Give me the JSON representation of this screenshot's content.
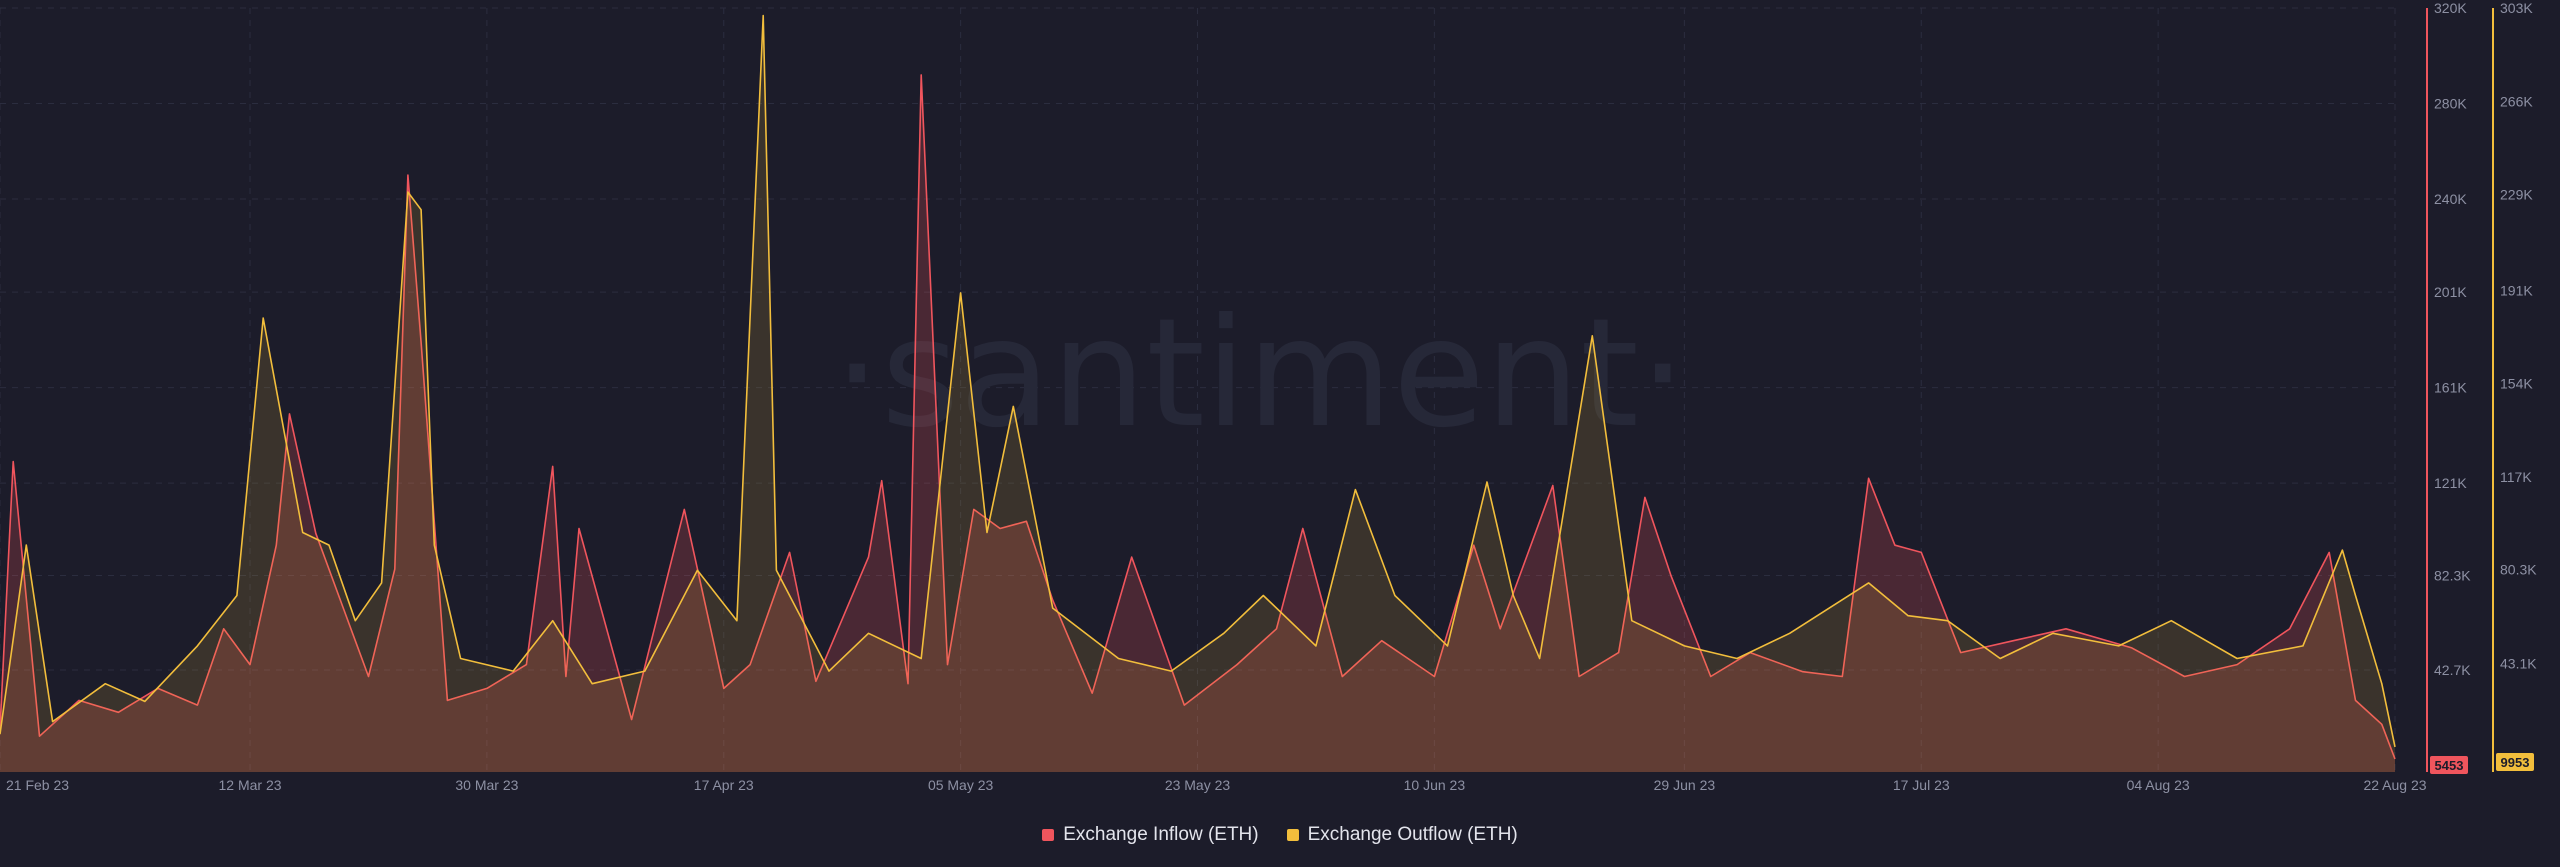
{
  "watermark": "·santiment·",
  "legend": [
    {
      "label": "Exchange Inflow (ETH)",
      "color": "#f0555d"
    },
    {
      "label": "Exchange Outflow (ETH)",
      "color": "#f2be3c"
    }
  ],
  "chart_data": {
    "type": "line",
    "x_range": [
      "2023-02-21",
      "2023-08-22"
    ],
    "x_tick_labels": [
      "21 Feb 23",
      "12 Mar 23",
      "30 Mar 23",
      "17 Apr 23",
      "05 May 23",
      "23 May 23",
      "10 Jun 23",
      "29 Jun 23",
      "17 Jul 23",
      "04 Aug 23",
      "22 Aug 23"
    ],
    "grid": true,
    "legend_position": "bottom-center",
    "axes": [
      {
        "name": "inflow",
        "side": "right-inner",
        "color": "#f0555d",
        "ylim": [
          0,
          320000
        ],
        "tick_labels": [
          "320K",
          "280K",
          "240K",
          "201K",
          "161K",
          "121K",
          "82.3K",
          "42.7K"
        ],
        "tick_values": [
          320000,
          280000,
          240000,
          201000,
          161000,
          121000,
          82300,
          42700
        ],
        "last_value_label": "5453"
      },
      {
        "name": "outflow",
        "side": "right-outer",
        "color": "#f2be3c",
        "ylim": [
          0,
          303000
        ],
        "tick_labels": [
          "303K",
          "266K",
          "229K",
          "191K",
          "154K",
          "117K",
          "80.3K",
          "43.1K"
        ],
        "tick_values": [
          303000,
          266000,
          229000,
          191000,
          154000,
          117000,
          80300,
          43100
        ],
        "last_value_label": "9953"
      }
    ],
    "series": [
      {
        "name": "Exchange Inflow (ETH)",
        "axis": "inflow",
        "color": "#f0555d",
        "points": [
          [
            "2023-02-21",
            18000
          ],
          [
            "2023-02-22",
            130000
          ],
          [
            "2023-02-24",
            15000
          ],
          [
            "2023-02-27",
            30000
          ],
          [
            "2023-03-02",
            25000
          ],
          [
            "2023-03-05",
            35000
          ],
          [
            "2023-03-08",
            28000
          ],
          [
            "2023-03-10",
            60000
          ],
          [
            "2023-03-12",
            45000
          ],
          [
            "2023-03-14",
            95000
          ],
          [
            "2023-03-15",
            150000
          ],
          [
            "2023-03-17",
            100000
          ],
          [
            "2023-03-19",
            70000
          ],
          [
            "2023-03-21",
            40000
          ],
          [
            "2023-03-23",
            85000
          ],
          [
            "2023-03-24",
            250000
          ],
          [
            "2023-03-25",
            180000
          ],
          [
            "2023-03-27",
            30000
          ],
          [
            "2023-03-30",
            35000
          ],
          [
            "2023-04-02",
            45000
          ],
          [
            "2023-04-04",
            128000
          ],
          [
            "2023-04-05",
            40000
          ],
          [
            "2023-04-06",
            102000
          ],
          [
            "2023-04-10",
            22000
          ],
          [
            "2023-04-14",
            110000
          ],
          [
            "2023-04-17",
            35000
          ],
          [
            "2023-04-19",
            45000
          ],
          [
            "2023-04-22",
            92000
          ],
          [
            "2023-04-24",
            38000
          ],
          [
            "2023-04-28",
            90000
          ],
          [
            "2023-04-29",
            122000
          ],
          [
            "2023-05-01",
            37000
          ],
          [
            "2023-05-02",
            292000
          ],
          [
            "2023-05-04",
            45000
          ],
          [
            "2023-05-06",
            110000
          ],
          [
            "2023-05-08",
            102000
          ],
          [
            "2023-05-10",
            105000
          ],
          [
            "2023-05-12",
            72000
          ],
          [
            "2023-05-15",
            33000
          ],
          [
            "2023-05-18",
            90000
          ],
          [
            "2023-05-22",
            28000
          ],
          [
            "2023-05-26",
            45000
          ],
          [
            "2023-05-29",
            60000
          ],
          [
            "2023-05-31",
            102000
          ],
          [
            "2023-06-03",
            40000
          ],
          [
            "2023-06-06",
            55000
          ],
          [
            "2023-06-10",
            40000
          ],
          [
            "2023-06-13",
            95000
          ],
          [
            "2023-06-15",
            60000
          ],
          [
            "2023-06-19",
            120000
          ],
          [
            "2023-06-21",
            40000
          ],
          [
            "2023-06-24",
            50000
          ],
          [
            "2023-06-26",
            115000
          ],
          [
            "2023-06-28",
            82000
          ],
          [
            "2023-07-01",
            40000
          ],
          [
            "2023-07-04",
            50000
          ],
          [
            "2023-07-08",
            42000
          ],
          [
            "2023-07-11",
            40000
          ],
          [
            "2023-07-13",
            123000
          ],
          [
            "2023-07-15",
            95000
          ],
          [
            "2023-07-17",
            92000
          ],
          [
            "2023-07-20",
            50000
          ],
          [
            "2023-07-24",
            55000
          ],
          [
            "2023-07-28",
            60000
          ],
          [
            "2023-08-02",
            52000
          ],
          [
            "2023-08-06",
            40000
          ],
          [
            "2023-08-10",
            45000
          ],
          [
            "2023-08-14",
            60000
          ],
          [
            "2023-08-17",
            92000
          ],
          [
            "2023-08-19",
            30000
          ],
          [
            "2023-08-21",
            20000
          ],
          [
            "2023-08-22",
            5453
          ]
        ]
      },
      {
        "name": "Exchange Outflow (ETH)",
        "axis": "outflow",
        "color": "#f2be3c",
        "points": [
          [
            "2023-02-21",
            15000
          ],
          [
            "2023-02-23",
            90000
          ],
          [
            "2023-02-25",
            20000
          ],
          [
            "2023-03-01",
            35000
          ],
          [
            "2023-03-04",
            28000
          ],
          [
            "2023-03-08",
            50000
          ],
          [
            "2023-03-11",
            70000
          ],
          [
            "2023-03-13",
            180000
          ],
          [
            "2023-03-16",
            95000
          ],
          [
            "2023-03-18",
            90000
          ],
          [
            "2023-03-20",
            60000
          ],
          [
            "2023-03-22",
            75000
          ],
          [
            "2023-03-24",
            230000
          ],
          [
            "2023-03-25",
            223000
          ],
          [
            "2023-03-26",
            90000
          ],
          [
            "2023-03-28",
            45000
          ],
          [
            "2023-04-01",
            40000
          ],
          [
            "2023-04-04",
            60000
          ],
          [
            "2023-04-07",
            35000
          ],
          [
            "2023-04-11",
            40000
          ],
          [
            "2023-04-15",
            80000
          ],
          [
            "2023-04-18",
            60000
          ],
          [
            "2023-04-20",
            300000
          ],
          [
            "2023-04-21",
            80000
          ],
          [
            "2023-04-25",
            40000
          ],
          [
            "2023-04-28",
            55000
          ],
          [
            "2023-05-02",
            45000
          ],
          [
            "2023-05-05",
            190000
          ],
          [
            "2023-05-07",
            95000
          ],
          [
            "2023-05-09",
            145000
          ],
          [
            "2023-05-12",
            65000
          ],
          [
            "2023-05-17",
            45000
          ],
          [
            "2023-05-21",
            40000
          ],
          [
            "2023-05-25",
            55000
          ],
          [
            "2023-05-28",
            70000
          ],
          [
            "2023-06-01",
            50000
          ],
          [
            "2023-06-04",
            112000
          ],
          [
            "2023-06-07",
            70000
          ],
          [
            "2023-06-11",
            50000
          ],
          [
            "2023-06-14",
            115000
          ],
          [
            "2023-06-16",
            70000
          ],
          [
            "2023-06-18",
            45000
          ],
          [
            "2023-06-22",
            173000
          ],
          [
            "2023-06-25",
            60000
          ],
          [
            "2023-06-29",
            50000
          ],
          [
            "2023-07-03",
            45000
          ],
          [
            "2023-07-07",
            55000
          ],
          [
            "2023-07-13",
            75000
          ],
          [
            "2023-07-16",
            62000
          ],
          [
            "2023-07-19",
            60000
          ],
          [
            "2023-07-23",
            45000
          ],
          [
            "2023-07-27",
            55000
          ],
          [
            "2023-08-01",
            50000
          ],
          [
            "2023-08-05",
            60000
          ],
          [
            "2023-08-10",
            45000
          ],
          [
            "2023-08-15",
            50000
          ],
          [
            "2023-08-18",
            88000
          ],
          [
            "2023-08-19",
            70000
          ],
          [
            "2023-08-21",
            35000
          ],
          [
            "2023-08-22",
            9953
          ]
        ]
      }
    ]
  }
}
